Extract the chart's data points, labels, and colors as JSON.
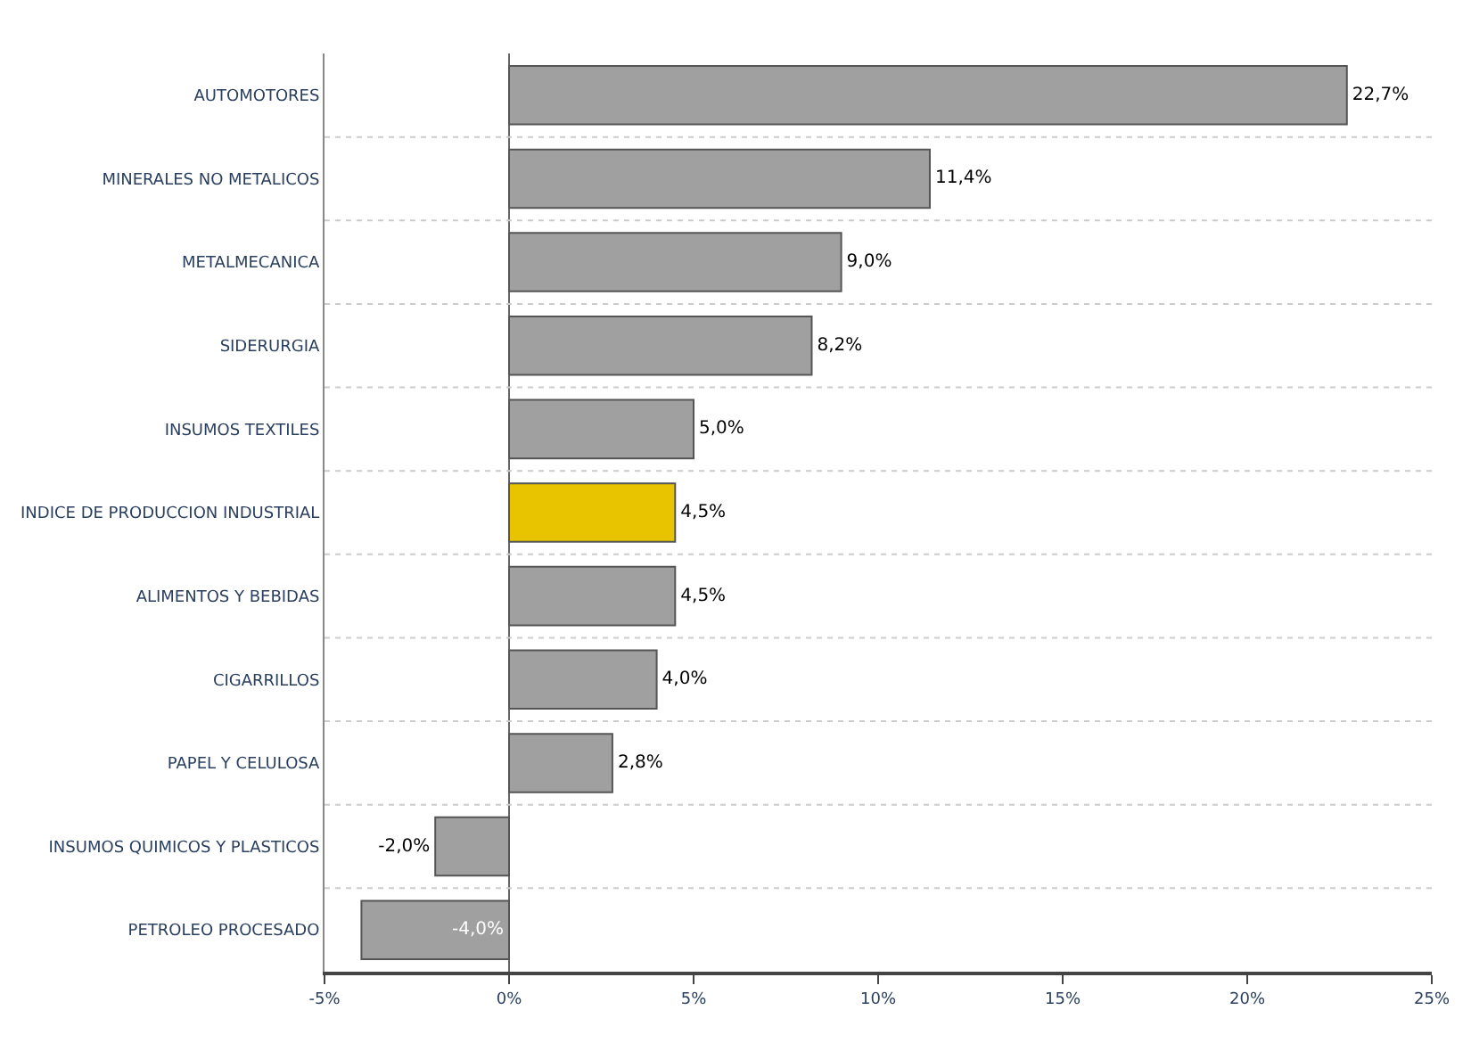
{
  "chart_data": {
    "type": "bar",
    "orientation": "horizontal",
    "categories": [
      "AUTOMOTORES",
      "MINERALES NO METALICOS",
      "METALMECANICA",
      "SIDERURGIA",
      "INSUMOS TEXTILES",
      "INDICE DE PRODUCCION INDUSTRIAL",
      "ALIMENTOS Y BEBIDAS",
      "CIGARRILLOS",
      "PAPEL Y CELULOSA",
      "INSUMOS QUIMICOS Y PLASTICOS",
      "PETROLEO PROCESADO"
    ],
    "values": [
      22.7,
      11.4,
      9.0,
      8.2,
      5.0,
      4.5,
      4.5,
      4.0,
      2.8,
      -2.0,
      -4.0
    ],
    "colors": [
      "#a0a0a0",
      "#a0a0a0",
      "#a0a0a0",
      "#a0a0a0",
      "#a0a0a0",
      "#e8c400",
      "#a0a0a0",
      "#a0a0a0",
      "#a0a0a0",
      "#a0a0a0",
      "#a0a0a0"
    ],
    "value_labels": [
      "22,7%",
      "11,4%",
      "9,0%",
      "8,2%",
      "5,0%",
      "4,5%",
      "4,5%",
      "4,0%",
      "2,8%",
      "-2,0%",
      "-4,0%"
    ],
    "xlim": [
      -5,
      25
    ],
    "xticks": [
      {
        "value": -5,
        "label": "-5%"
      },
      {
        "value": 0,
        "label": "0%"
      },
      {
        "value": 5,
        "label": "5%"
      },
      {
        "value": 10,
        "label": "10%"
      },
      {
        "value": 15,
        "label": "15%"
      },
      {
        "value": 20,
        "label": "20%"
      },
      {
        "value": 25,
        "label": "25%"
      }
    ]
  }
}
